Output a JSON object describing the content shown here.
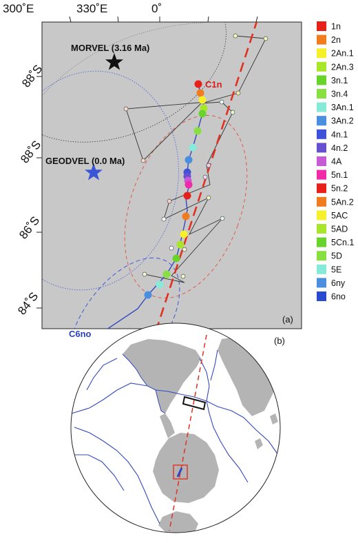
{
  "panel_a": {
    "tag": "(a)",
    "top_ticks": [
      "300˚E",
      "330˚E",
      "0˚"
    ],
    "left_ticks": [
      "88˚S",
      "88˚S",
      "86˚S",
      "84˚S"
    ],
    "poles": [
      {
        "label": "MORVEL (3.16 Ma)",
        "color": "#111111"
      },
      {
        "label": "GEODVEL (0.0 Ma)",
        "color": "#3a56d6"
      }
    ],
    "path_labels": [
      {
        "label": "C1n",
        "color": "#e01a1a"
      },
      {
        "label": "C6no",
        "color": "#2a3fbf"
      }
    ],
    "legend": [
      {
        "label": "1n",
        "color": "#e8201a"
      },
      {
        "label": "2n",
        "color": "#f07c1e"
      },
      {
        "label": "2An.1",
        "color": "#f6f02a"
      },
      {
        "label": "2An.3",
        "color": "#a8e62a"
      },
      {
        "label": "3n.1",
        "color": "#68d42a"
      },
      {
        "label": "3n.4",
        "color": "#88e040"
      },
      {
        "label": "3An.1",
        "color": "#86ead8"
      },
      {
        "label": "3An.2",
        "color": "#4a8ee0"
      },
      {
        "label": "4n.1",
        "color": "#3d52d8"
      },
      {
        "label": "4n.2",
        "color": "#6650d0"
      },
      {
        "label": "4A",
        "color": "#c85ad8"
      },
      {
        "label": "5n.1",
        "color": "#f02aa8"
      },
      {
        "label": "5n.2",
        "color": "#e8201a"
      },
      {
        "label": "5An.2",
        "color": "#f07c1e"
      },
      {
        "label": "5AC",
        "color": "#f6f02a"
      },
      {
        "label": "5AD",
        "color": "#a8e62a"
      },
      {
        "label": "5Cn.1",
        "color": "#68d42a"
      },
      {
        "label": "5D",
        "color": "#88e040"
      },
      {
        "label": "5E",
        "color": "#86ead8"
      },
      {
        "label": "6ny",
        "color": "#4a8ee0"
      },
      {
        "label": "6no",
        "color": "#2a4ad0"
      }
    ]
  },
  "panel_b": {
    "tag": "(b)"
  },
  "colors": {
    "map_gray": "#c8c8c8",
    "land_gray": "#b4b4b4",
    "ocean_white": "#ffffff",
    "boundary_blue": "#3348c0",
    "fit_line_red": "#e03020"
  }
}
